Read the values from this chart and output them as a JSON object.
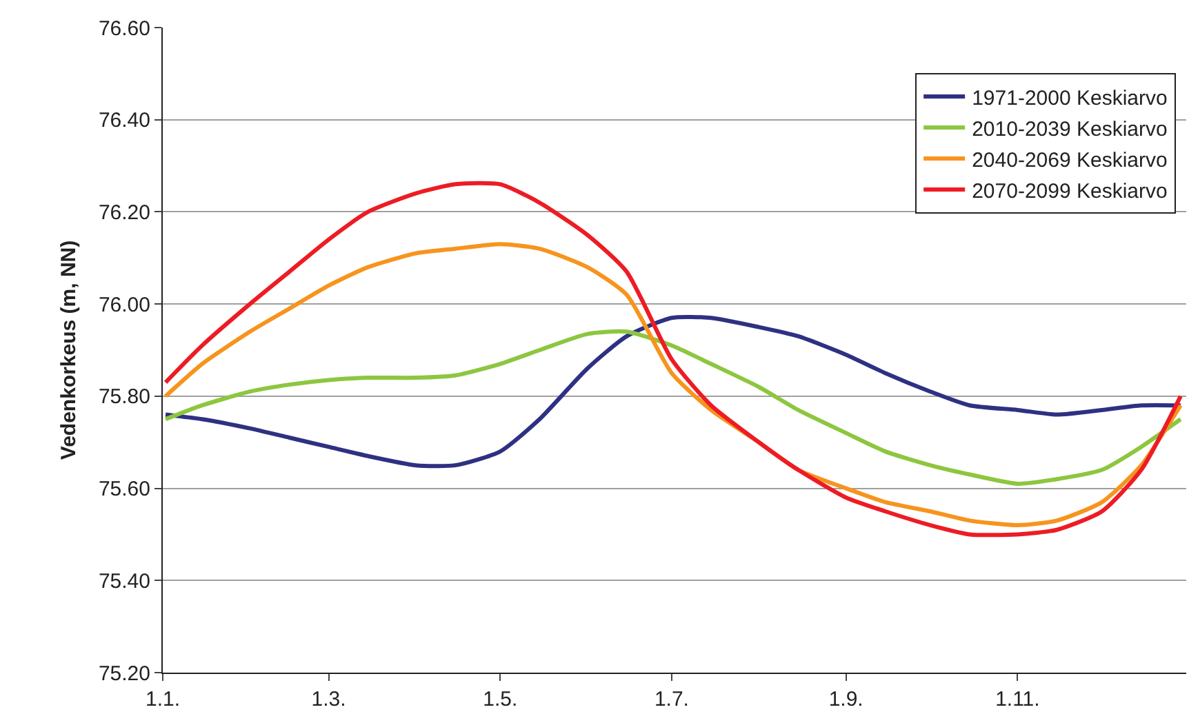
{
  "chart_data": {
    "type": "line",
    "ylabel": "Vedenkorkeus (m, NN)",
    "x": [
      "--01-02",
      "--01-15",
      "--02-01",
      "--02-15",
      "--03-01",
      "--03-15",
      "--04-01",
      "--04-15",
      "--05-01",
      "--05-15",
      "--06-01",
      "--06-15",
      "--07-01",
      "--07-15",
      "--08-01",
      "--08-15",
      "--09-01",
      "--09-15",
      "--10-01",
      "--10-15",
      "--11-01",
      "--11-15",
      "--12-01",
      "--12-15",
      "--12-29"
    ],
    "series": [
      {
        "name": "1971-2000 Keskiarvo",
        "color": "#2e3182",
        "values": [
          75.76,
          75.75,
          75.73,
          75.71,
          75.69,
          75.67,
          75.65,
          75.65,
          75.68,
          75.75,
          75.86,
          75.93,
          75.97,
          75.97,
          75.95,
          75.93,
          75.89,
          75.85,
          75.81,
          75.78,
          75.77,
          75.76,
          75.77,
          75.78,
          75.78
        ]
      },
      {
        "name": "2010-2039 Keskiarvo",
        "color": "#8dc63f",
        "values": [
          75.75,
          75.78,
          75.81,
          75.825,
          75.835,
          75.84,
          75.84,
          75.845,
          75.87,
          75.9,
          75.935,
          75.94,
          75.91,
          75.87,
          75.82,
          75.77,
          75.72,
          75.68,
          75.65,
          75.63,
          75.61,
          75.62,
          75.64,
          75.69,
          75.75
        ]
      },
      {
        "name": "2040-2069 Keskiarvo",
        "color": "#f7941d",
        "values": [
          75.8,
          75.87,
          75.94,
          75.99,
          76.04,
          76.08,
          76.11,
          76.12,
          76.13,
          76.12,
          76.08,
          76.02,
          75.85,
          75.77,
          75.7,
          75.64,
          75.6,
          75.57,
          75.55,
          75.53,
          75.52,
          75.53,
          75.57,
          75.65,
          75.78
        ]
      },
      {
        "name": "2070-2099 Keskiarvo",
        "color": "#ed1c24",
        "values": [
          75.83,
          75.91,
          76.0,
          76.07,
          76.14,
          76.2,
          76.24,
          76.26,
          76.26,
          76.22,
          76.15,
          76.07,
          75.88,
          75.78,
          75.7,
          75.64,
          75.58,
          75.55,
          75.52,
          75.5,
          75.5,
          75.51,
          75.55,
          75.64,
          75.8
        ]
      }
    ],
    "xlim": [
      "--01-01",
      "--12-31"
    ],
    "xticks": [
      {
        "value": "--01-01",
        "label": "1.1."
      },
      {
        "value": "--03-01",
        "label": "1.3."
      },
      {
        "value": "--05-01",
        "label": "1.5."
      },
      {
        "value": "--07-01",
        "label": "1.7."
      },
      {
        "value": "--09-01",
        "label": "1.9."
      },
      {
        "value": "--11-01",
        "label": "1.11."
      }
    ],
    "ylim": [
      75.2,
      76.6
    ],
    "yticks": [
      {
        "value": 75.2,
        "label": "75.20"
      },
      {
        "value": 75.4,
        "label": "75.40"
      },
      {
        "value": 75.6,
        "label": "75.60"
      },
      {
        "value": 75.8,
        "label": "75.80"
      },
      {
        "value": 76.0,
        "label": "76.00"
      },
      {
        "value": 76.2,
        "label": "76.20"
      },
      {
        "value": 76.4,
        "label": "76.40"
      },
      {
        "value": 76.6,
        "label": "76.60"
      }
    ],
    "grid": "y",
    "legend": "top right",
    "marker": "none",
    "line_style": "solid"
  }
}
